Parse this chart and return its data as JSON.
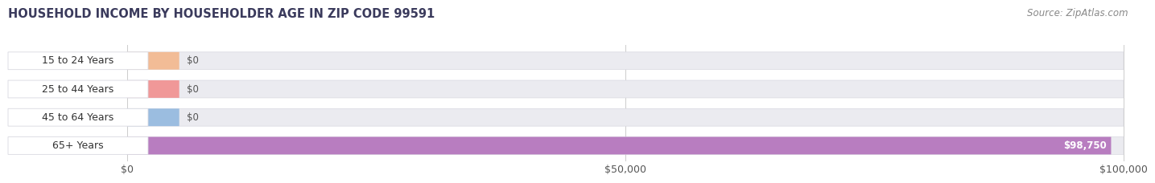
{
  "title": "HOUSEHOLD INCOME BY HOUSEHOLDER AGE IN ZIP CODE 99591",
  "source": "Source: ZipAtlas.com",
  "categories": [
    "15 to 24 Years",
    "25 to 44 Years",
    "45 to 64 Years",
    "65+ Years"
  ],
  "values": [
    0,
    0,
    0,
    98750
  ],
  "max_value": 100000,
  "bar_colors": [
    "#f2bc96",
    "#f09898",
    "#9bbde0",
    "#b87dc0"
  ],
  "value_labels": [
    "$0",
    "$0",
    "$0",
    "$98,750"
  ],
  "x_ticks": [
    0,
    50000,
    100000
  ],
  "x_tick_labels": [
    "$0",
    "$50,000",
    "$100,000"
  ],
  "title_fontsize": 10.5,
  "source_fontsize": 8.5,
  "label_fontsize": 9,
  "value_fontsize": 8.5,
  "tick_fontsize": 9,
  "bar_bg_color": "#ebebf0",
  "background_color": "#ffffff",
  "label_pill_color": "#ffffff",
  "bar_border_color": "#d8d8e0",
  "grid_color": "#cccccc"
}
